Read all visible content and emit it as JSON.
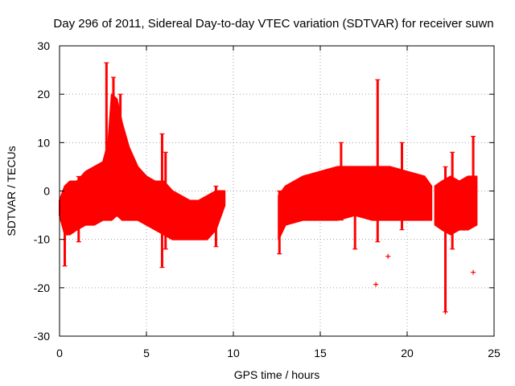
{
  "chart_data": {
    "type": "scatter",
    "title": "Day 296 of 2011, Sidereal Day-to-day VTEC variation (SDTVAR) for receiver suwn",
    "xlabel": "GPS time / hours",
    "ylabel": "SDTVAR / TECUs",
    "xlim": [
      0,
      25
    ],
    "ylim": [
      -30,
      30
    ],
    "grid": true,
    "series_color": "#ff0000",
    "xticks": [
      0,
      5,
      10,
      15,
      20,
      25
    ],
    "xtick_labels": [
      "0",
      "5",
      "10",
      "15",
      "20",
      "25"
    ],
    "yticks": [
      -30,
      -20,
      -10,
      0,
      10,
      20,
      30
    ],
    "ytick_labels": [
      "-30",
      "-20",
      "-10",
      "0",
      "10",
      "20",
      "30"
    ],
    "envelope": [
      {
        "x": [
          0.0,
          0.3,
          0.6,
          1.0,
          1.5,
          2.0,
          2.5,
          2.8,
          3.0,
          3.3,
          3.6,
          4.0,
          4.5,
          5.0,
          5.5,
          6.0,
          6.5,
          7.0,
          7.5,
          8.0,
          8.5,
          9.0,
          9.5
        ],
        "upper": [
          -2,
          1,
          2,
          2,
          4,
          5,
          6,
          10,
          20,
          19,
          14,
          9,
          5,
          3,
          2,
          2,
          0,
          -1,
          -2,
          -2,
          -1,
          0,
          0
        ],
        "lower": [
          -5,
          -9,
          -9,
          -8,
          -7,
          -7,
          -6,
          -6,
          -6,
          -5,
          -6,
          -6,
          -6,
          -7,
          -8,
          -9,
          -10,
          -10,
          -10,
          -10,
          -10,
          -8,
          -3
        ]
      },
      {
        "x": [
          12.6,
          13.0,
          14.0,
          15.0,
          16.0,
          17.0,
          18.0,
          18.5,
          19.0,
          20.0,
          21.0,
          21.4
        ],
        "upper": [
          -1,
          1,
          3,
          4,
          5,
          5,
          5,
          5,
          5,
          4,
          3,
          1
        ],
        "lower": [
          -10,
          -7,
          -6,
          -6,
          -6,
          -5,
          -6,
          -6,
          -6,
          -6,
          -6,
          -6
        ]
      },
      {
        "x": [
          21.6,
          22.0,
          22.5,
          23.0,
          23.5,
          24.0
        ],
        "upper": [
          1,
          2,
          3,
          2,
          3,
          3
        ],
        "lower": [
          -7,
          -8,
          -9,
          -8,
          -8,
          -7
        ]
      }
    ],
    "spikes": [
      {
        "x": 0.3,
        "top": 0,
        "bottom": -15.5
      },
      {
        "x": 1.1,
        "top": 3,
        "bottom": -10.5
      },
      {
        "x": 2.7,
        "top": 26.5,
        "bottom": -1
      },
      {
        "x": 3.1,
        "top": 23.5,
        "bottom": 5
      },
      {
        "x": 3.5,
        "top": 20,
        "bottom": 3
      },
      {
        "x": 5.9,
        "top": 11.8,
        "bottom": -15.8
      },
      {
        "x": 6.1,
        "top": 8,
        "bottom": -12
      },
      {
        "x": 9.0,
        "top": 1,
        "bottom": -11.5
      },
      {
        "x": 12.65,
        "top": 0,
        "bottom": -13
      },
      {
        "x": 16.2,
        "top": 10,
        "bottom": -6
      },
      {
        "x": 17.0,
        "top": 4,
        "bottom": -12
      },
      {
        "x": 18.3,
        "top": 23,
        "bottom": -10.5
      },
      {
        "x": 19.7,
        "top": 10,
        "bottom": -8
      },
      {
        "x": 22.2,
        "top": 5,
        "bottom": -25
      },
      {
        "x": 22.6,
        "top": 8,
        "bottom": -12
      },
      {
        "x": 23.8,
        "top": 11.3,
        "bottom": -7
      }
    ],
    "outliers": [
      {
        "x": 18.2,
        "y": -19.3
      },
      {
        "x": 18.9,
        "y": -13.5
      },
      {
        "x": 23.8,
        "y": -16.8
      },
      {
        "x": 22.2,
        "y": -25.0
      }
    ]
  }
}
